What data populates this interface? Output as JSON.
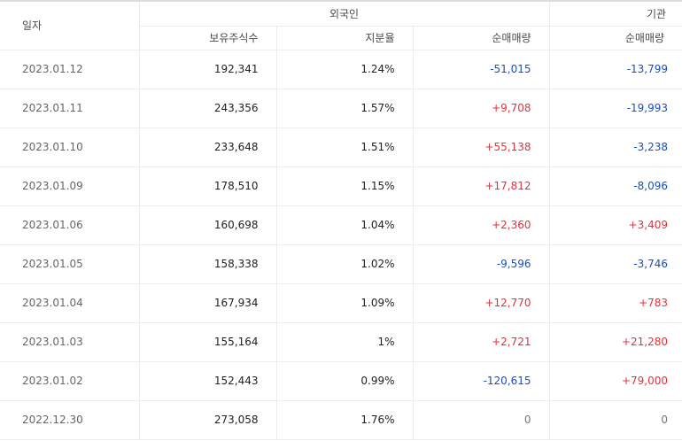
{
  "header": {
    "date_label": "일자",
    "foreign_label": "외국인",
    "institution_label": "기관",
    "holdings_label": "보유주식수",
    "ratio_label": "지분율",
    "foreign_net_label": "순매매량",
    "inst_net_label": "순매매량"
  },
  "rows": [
    {
      "date": "2023.01.12",
      "holdings": "192,341",
      "ratio": "1.24%",
      "foreign_net": "-51,015",
      "inst_net": "-13,799"
    },
    {
      "date": "2023.01.11",
      "holdings": "243,356",
      "ratio": "1.57%",
      "foreign_net": "+9,708",
      "inst_net": "-19,993"
    },
    {
      "date": "2023.01.10",
      "holdings": "233,648",
      "ratio": "1.51%",
      "foreign_net": "+55,138",
      "inst_net": "-3,238"
    },
    {
      "date": "2023.01.09",
      "holdings": "178,510",
      "ratio": "1.15%",
      "foreign_net": "+17,812",
      "inst_net": "-8,096"
    },
    {
      "date": "2023.01.06",
      "holdings": "160,698",
      "ratio": "1.04%",
      "foreign_net": "+2,360",
      "inst_net": "+3,409"
    },
    {
      "date": "2023.01.05",
      "holdings": "158,338",
      "ratio": "1.02%",
      "foreign_net": "-9,596",
      "inst_net": "-3,746"
    },
    {
      "date": "2023.01.04",
      "holdings": "167,934",
      "ratio": "1.09%",
      "foreign_net": "+12,770",
      "inst_net": "+783"
    },
    {
      "date": "2023.01.03",
      "holdings": "155,164",
      "ratio": "1%",
      "foreign_net": "+2,721",
      "inst_net": "+21,280"
    },
    {
      "date": "2023.01.02",
      "holdings": "152,443",
      "ratio": "0.99%",
      "foreign_net": "-120,615",
      "inst_net": "+79,000"
    },
    {
      "date": "2022.12.30",
      "holdings": "273,058",
      "ratio": "1.76%",
      "foreign_net": "0",
      "inst_net": "0"
    }
  ],
  "colors": {
    "positive": "#e2333a",
    "negative": "#1a4fb8",
    "neutral": "#777777"
  }
}
